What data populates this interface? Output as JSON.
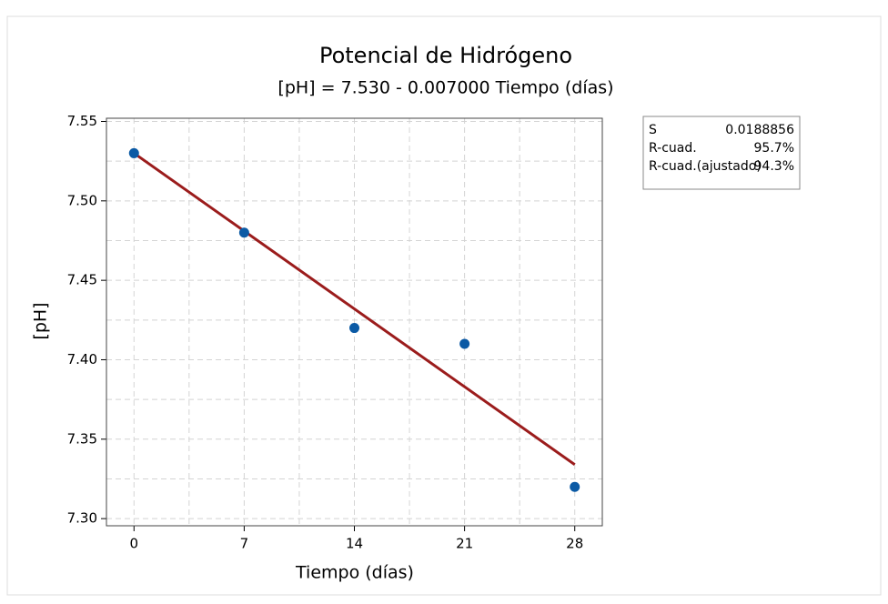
{
  "chart_data": {
    "type": "scatter",
    "title": "Potencial de Hidrógeno",
    "subtitle": "[pH] = 7.530 - 0.007000 Tiempo (días)",
    "x_label": "Tiempo (días)",
    "y_label": "[pH]",
    "x": [
      0,
      7,
      14,
      21,
      28
    ],
    "series": [
      {
        "name": "[pH]",
        "color": "#0b5aa5",
        "values": [
          7.53,
          7.48,
          7.42,
          7.41,
          7.32
        ]
      }
    ],
    "fit_line": {
      "color": "#9b1c1c",
      "x": [
        0,
        28
      ],
      "values": [
        7.53,
        7.334
      ]
    },
    "xlim": [
      -1.75,
      29.75
    ],
    "ylim": [
      7.2955,
      7.552
    ],
    "xticks": [
      0,
      7,
      14,
      21,
      28
    ],
    "yticks": [
      {
        "value": 7.3,
        "label": "7.30"
      },
      7.35,
      {
        "value": 7.4,
        "label": "7.40"
      },
      7.45,
      {
        "value": 7.5,
        "label": "7.50"
      },
      7.55
    ],
    "minor_xticks": [
      3.5,
      10.5,
      17.5,
      24.5
    ],
    "minor_yticks": [
      7.325,
      7.375,
      7.425,
      7.475,
      7.525
    ],
    "grid": true,
    "stats": [
      [
        "S",
        "0.0188856"
      ],
      [
        "R-cuad.",
        "95.7%"
      ],
      [
        "R-cuad.(ajustado)",
        "94.3%"
      ]
    ]
  }
}
